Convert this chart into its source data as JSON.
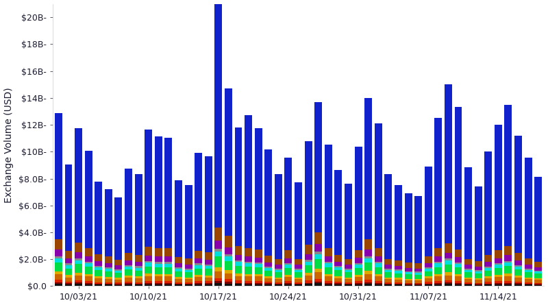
{
  "ylabel": "Exchange Volume (USD)",
  "background_color": "#ffffff",
  "text_color": "#1a1a2e",
  "bar_width": 0.75,
  "ylim": [
    0,
    21000000000
  ],
  "yticks": [
    0,
    2000000000,
    4000000000,
    6000000000,
    8000000000,
    10000000000,
    12000000000,
    14000000000,
    16000000000,
    18000000000,
    20000000000
  ],
  "ytick_labels": [
    "$0.0",
    "$2.0B-",
    "$4.0B-",
    "$6.0B-",
    "$8.0B-",
    "$10B-",
    "$12B-",
    "$14B-",
    "$16B-",
    "$18B-",
    "$20B-"
  ],
  "xtick_labels": [
    "10/03/21",
    "10/10/21",
    "10/17/21",
    "10/24/21",
    "10/31/21",
    "11/07/21",
    "11/14/21"
  ],
  "xtick_positions": [
    2,
    9,
    16,
    23,
    30,
    37,
    44
  ],
  "colors": [
    "#111111",
    "#7b0000",
    "#dd2200",
    "#cc6600",
    "#ddaa00",
    "#00dd44",
    "#00dddd",
    "#888888",
    "#8800aa",
    "#994400",
    "#1122cc"
  ],
  "layer_names": [
    "black",
    "darkred",
    "red",
    "orange",
    "gold",
    "green",
    "cyan",
    "gray",
    "purple",
    "brown",
    "blue"
  ],
  "n_bars": 49,
  "layers_billion": {
    "black": [
      0.18,
      0.12,
      0.15,
      0.13,
      0.1,
      0.1,
      0.09,
      0.12,
      0.1,
      0.14,
      0.14,
      0.14,
      0.1,
      0.1,
      0.13,
      0.13,
      0.22,
      0.19,
      0.15,
      0.14,
      0.14,
      0.12,
      0.1,
      0.13,
      0.1,
      0.15,
      0.2,
      0.14,
      0.12,
      0.1,
      0.14,
      0.18,
      0.14,
      0.1,
      0.1,
      0.09,
      0.09,
      0.11,
      0.14,
      0.16,
      0.14,
      0.1,
      0.09,
      0.11,
      0.13,
      0.14,
      0.12,
      0.1,
      0.09
    ],
    "darkred": [
      0.12,
      0.09,
      0.11,
      0.1,
      0.08,
      0.07,
      0.07,
      0.08,
      0.08,
      0.1,
      0.1,
      0.1,
      0.07,
      0.07,
      0.09,
      0.09,
      0.15,
      0.13,
      0.1,
      0.1,
      0.1,
      0.08,
      0.07,
      0.09,
      0.07,
      0.1,
      0.14,
      0.1,
      0.08,
      0.07,
      0.09,
      0.12,
      0.1,
      0.07,
      0.07,
      0.06,
      0.06,
      0.08,
      0.1,
      0.11,
      0.1,
      0.07,
      0.06,
      0.08,
      0.09,
      0.1,
      0.09,
      0.07,
      0.06
    ],
    "red": [
      0.18,
      0.14,
      0.17,
      0.15,
      0.12,
      0.12,
      0.1,
      0.13,
      0.12,
      0.16,
      0.15,
      0.15,
      0.12,
      0.11,
      0.14,
      0.14,
      0.23,
      0.2,
      0.16,
      0.15,
      0.15,
      0.12,
      0.11,
      0.14,
      0.11,
      0.16,
      0.21,
      0.15,
      0.13,
      0.11,
      0.14,
      0.18,
      0.15,
      0.11,
      0.1,
      0.09,
      0.09,
      0.12,
      0.15,
      0.17,
      0.15,
      0.11,
      0.1,
      0.12,
      0.14,
      0.16,
      0.13,
      0.11,
      0.1
    ],
    "gold": [
      0.22,
      0.17,
      0.2,
      0.18,
      0.15,
      0.14,
      0.13,
      0.16,
      0.15,
      0.19,
      0.18,
      0.18,
      0.14,
      0.13,
      0.17,
      0.16,
      0.3,
      0.25,
      0.2,
      0.19,
      0.18,
      0.15,
      0.13,
      0.18,
      0.13,
      0.2,
      0.26,
      0.18,
      0.15,
      0.13,
      0.18,
      0.23,
      0.18,
      0.13,
      0.12,
      0.11,
      0.11,
      0.14,
      0.18,
      0.21,
      0.18,
      0.13,
      0.12,
      0.15,
      0.17,
      0.19,
      0.16,
      0.13,
      0.12
    ],
    "orange": [
      0.4,
      0.3,
      0.38,
      0.33,
      0.27,
      0.25,
      0.22,
      0.28,
      0.27,
      0.33,
      0.32,
      0.32,
      0.25,
      0.23,
      0.3,
      0.29,
      0.5,
      0.43,
      0.35,
      0.33,
      0.32,
      0.27,
      0.24,
      0.31,
      0.24,
      0.36,
      0.47,
      0.33,
      0.27,
      0.24,
      0.31,
      0.41,
      0.33,
      0.24,
      0.22,
      0.2,
      0.2,
      0.26,
      0.33,
      0.37,
      0.32,
      0.24,
      0.22,
      0.27,
      0.31,
      0.34,
      0.28,
      0.24,
      0.21
    ],
    "green": [
      0.65,
      0.5,
      0.62,
      0.54,
      0.45,
      0.42,
      0.37,
      0.46,
      0.44,
      0.54,
      0.52,
      0.52,
      0.4,
      0.38,
      0.49,
      0.47,
      0.8,
      0.68,
      0.56,
      0.52,
      0.5,
      0.42,
      0.38,
      0.49,
      0.38,
      0.57,
      0.74,
      0.52,
      0.43,
      0.38,
      0.49,
      0.64,
      0.52,
      0.38,
      0.35,
      0.32,
      0.31,
      0.4,
      0.52,
      0.59,
      0.5,
      0.38,
      0.34,
      0.42,
      0.5,
      0.55,
      0.46,
      0.38,
      0.34
    ],
    "gray": [
      0.16,
      0.12,
      0.15,
      0.13,
      0.11,
      0.1,
      0.09,
      0.11,
      0.11,
      0.13,
      0.13,
      0.13,
      0.1,
      0.09,
      0.12,
      0.11,
      0.19,
      0.17,
      0.13,
      0.13,
      0.12,
      0.1,
      0.09,
      0.12,
      0.09,
      0.14,
      0.18,
      0.13,
      0.1,
      0.09,
      0.12,
      0.16,
      0.13,
      0.09,
      0.09,
      0.08,
      0.08,
      0.1,
      0.13,
      0.14,
      0.12,
      0.09,
      0.08,
      0.1,
      0.12,
      0.13,
      0.11,
      0.09,
      0.08
    ],
    "cyan": [
      0.32,
      0.24,
      0.3,
      0.26,
      0.22,
      0.2,
      0.18,
      0.22,
      0.21,
      0.27,
      0.26,
      0.26,
      0.2,
      0.19,
      0.24,
      0.23,
      0.39,
      0.33,
      0.27,
      0.25,
      0.24,
      0.2,
      0.18,
      0.24,
      0.18,
      0.28,
      0.36,
      0.26,
      0.21,
      0.18,
      0.24,
      0.31,
      0.26,
      0.18,
      0.17,
      0.16,
      0.15,
      0.2,
      0.26,
      0.29,
      0.25,
      0.18,
      0.17,
      0.21,
      0.24,
      0.27,
      0.22,
      0.18,
      0.16
    ],
    "purple": [
      0.5,
      0.38,
      0.46,
      0.41,
      0.34,
      0.31,
      0.29,
      0.35,
      0.34,
      0.42,
      0.4,
      0.4,
      0.31,
      0.29,
      0.37,
      0.36,
      0.62,
      0.52,
      0.42,
      0.4,
      0.38,
      0.32,
      0.28,
      0.38,
      0.28,
      0.43,
      0.56,
      0.4,
      0.33,
      0.28,
      0.38,
      0.5,
      0.4,
      0.28,
      0.27,
      0.24,
      0.23,
      0.31,
      0.4,
      0.45,
      0.38,
      0.28,
      0.26,
      0.33,
      0.38,
      0.42,
      0.35,
      0.29,
      0.26
    ],
    "brown": [
      0.75,
      0.57,
      0.7,
      0.62,
      0.52,
      0.48,
      0.44,
      0.54,
      0.52,
      0.65,
      0.62,
      0.62,
      0.48,
      0.45,
      0.58,
      0.56,
      0.96,
      0.82,
      0.66,
      0.62,
      0.6,
      0.5,
      0.44,
      0.58,
      0.44,
      0.67,
      0.87,
      0.62,
      0.52,
      0.44,
      0.58,
      0.76,
      0.62,
      0.44,
      0.41,
      0.38,
      0.36,
      0.48,
      0.61,
      0.7,
      0.6,
      0.44,
      0.4,
      0.52,
      0.6,
      0.66,
      0.56,
      0.46,
      0.41
    ],
    "blue": [
      9.4,
      6.4,
      8.5,
      7.2,
      5.4,
      5.0,
      4.6,
      6.3,
      6.0,
      8.7,
      8.3,
      8.2,
      5.7,
      5.5,
      7.3,
      7.1,
      17.2,
      11.0,
      8.8,
      9.9,
      9.0,
      7.9,
      6.3,
      6.9,
      5.7,
      7.7,
      9.7,
      7.7,
      6.3,
      5.6,
      7.7,
      10.5,
      9.3,
      6.3,
      5.6,
      5.2,
      5.0,
      6.7,
      9.7,
      11.8,
      10.6,
      6.8,
      5.6,
      7.7,
      9.3,
      10.5,
      8.7,
      7.5,
      6.3
    ]
  }
}
